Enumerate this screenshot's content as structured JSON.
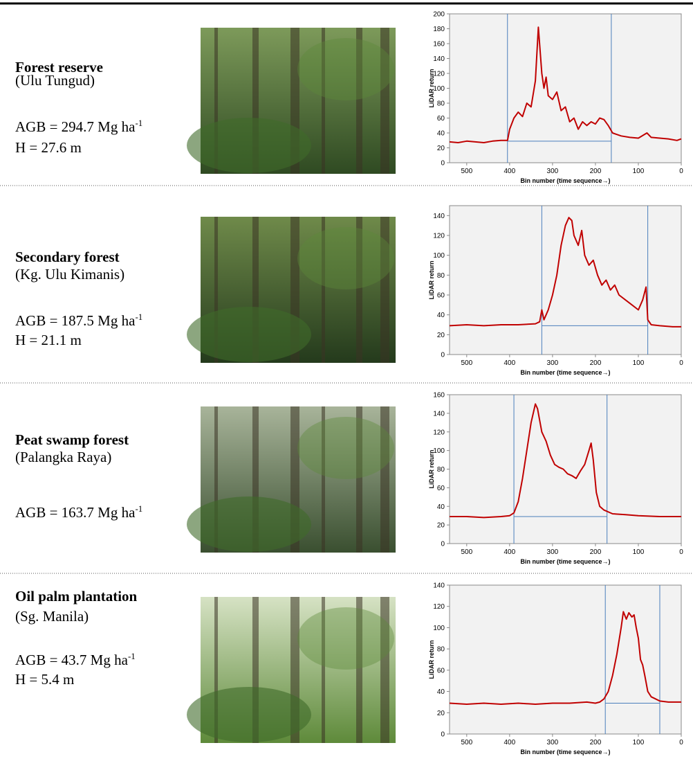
{
  "panels": [
    {
      "title": "Forest reserve",
      "location": "(Ulu Tungud)",
      "agb": "AGB = 294.7 Mg ha",
      "agb_sup": "-1",
      "height": "H = 27.6 m"
    },
    {
      "title": "Secondary forest",
      "location": "(Kg. Ulu Kimanis)",
      "agb": "AGB = 187.5 Mg ha",
      "agb_sup": "-1",
      "height": "H = 21.1 m"
    },
    {
      "title": "Peat swamp forest",
      "location": "(Palangka Raya)",
      "agb": "AGB = 163.7 Mg ha",
      "agb_sup": "-1"
    },
    {
      "title": "Oil palm plantation",
      "location": "(Sg. Manila)",
      "agb": "AGB = 43.7 Mg ha",
      "agb_sup": "-1",
      "height": "H = 5.4 m"
    }
  ],
  "chart_data": [
    {
      "type": "line",
      "ylabel": "LiDAR return",
      "xlabel": "Bin number (time sequence→)",
      "color": "#c00000",
      "ref_color": "#4a7ebb",
      "xlim": [
        540,
        0
      ],
      "xticks": [
        500,
        400,
        300,
        200,
        100,
        0
      ],
      "ylim": [
        0,
        200
      ],
      "yticks": [
        0,
        20,
        40,
        60,
        80,
        100,
        120,
        140,
        160,
        180,
        200
      ],
      "vlines": [
        405,
        163
      ],
      "hline": 29,
      "x": [
        540,
        520,
        500,
        480,
        460,
        440,
        420,
        405,
        400,
        390,
        380,
        370,
        360,
        350,
        340,
        333,
        325,
        320,
        315,
        310,
        300,
        290,
        280,
        270,
        260,
        250,
        240,
        230,
        220,
        210,
        200,
        190,
        180,
        170,
        160,
        150,
        140,
        120,
        100,
        80,
        70,
        50,
        30,
        10,
        0
      ],
      "values": [
        28,
        27,
        29,
        28,
        27,
        29,
        30,
        30,
        45,
        60,
        68,
        62,
        80,
        75,
        110,
        182,
        120,
        100,
        115,
        90,
        85,
        95,
        70,
        75,
        55,
        60,
        45,
        55,
        50,
        55,
        52,
        60,
        58,
        50,
        40,
        38,
        36,
        34,
        33,
        40,
        34,
        33,
        32,
        30,
        32
      ]
    },
    {
      "type": "line",
      "ylabel": "LiDAR return",
      "xlabel": "Bin number (time sequence→)",
      "color": "#c00000",
      "ref_color": "#4a7ebb",
      "xlim": [
        540,
        0
      ],
      "xticks": [
        500,
        400,
        300,
        200,
        100,
        0
      ],
      "ylim": [
        0,
        150
      ],
      "yticks": [
        0,
        20,
        40,
        60,
        80,
        100,
        120,
        140
      ],
      "vlines": [
        325,
        78
      ],
      "hline": 29,
      "x": [
        540,
        500,
        460,
        420,
        380,
        340,
        330,
        325,
        320,
        310,
        300,
        290,
        280,
        270,
        262,
        255,
        250,
        240,
        232,
        225,
        215,
        205,
        195,
        185,
        175,
        165,
        155,
        145,
        130,
        115,
        100,
        90,
        82,
        78,
        70,
        50,
        20,
        0
      ],
      "values": [
        29,
        30,
        29,
        30,
        30,
        31,
        33,
        45,
        35,
        45,
        60,
        80,
        110,
        130,
        138,
        135,
        120,
        110,
        125,
        100,
        90,
        95,
        80,
        70,
        75,
        65,
        70,
        60,
        55,
        50,
        45,
        55,
        68,
        35,
        30,
        29,
        28,
        28
      ]
    },
    {
      "type": "line",
      "ylabel": "LiDAR return",
      "xlabel": "Bin number (time sequence→)",
      "color": "#c00000",
      "ref_color": "#4a7ebb",
      "xlim": [
        540,
        0
      ],
      "xticks": [
        500,
        400,
        300,
        200,
        100,
        0
      ],
      "ylim": [
        0,
        160
      ],
      "yticks": [
        0,
        20,
        40,
        60,
        80,
        100,
        120,
        140,
        160
      ],
      "vlines": [
        390,
        173
      ],
      "hline": 29,
      "x": [
        540,
        500,
        460,
        420,
        400,
        390,
        380,
        370,
        360,
        350,
        340,
        335,
        325,
        315,
        305,
        295,
        285,
        275,
        265,
        255,
        245,
        235,
        225,
        215,
        210,
        205,
        198,
        190,
        180,
        160,
        130,
        100,
        50,
        0
      ],
      "values": [
        29,
        29,
        28,
        29,
        30,
        33,
        45,
        70,
        100,
        130,
        150,
        145,
        120,
        110,
        95,
        85,
        82,
        80,
        75,
        73,
        70,
        78,
        85,
        100,
        108,
        90,
        55,
        40,
        36,
        32,
        31,
        30,
        29,
        29
      ]
    },
    {
      "type": "line",
      "ylabel": "LiDAR return",
      "xlabel": "Bin number (time sequence→)",
      "color": "#c00000",
      "ref_color": "#4a7ebb",
      "xlim": [
        540,
        0
      ],
      "xticks": [
        500,
        400,
        300,
        200,
        100,
        0
      ],
      "ylim": [
        0,
        140
      ],
      "yticks": [
        0,
        20,
        40,
        60,
        80,
        100,
        120,
        140
      ],
      "vlines": [
        177,
        50
      ],
      "hline": 29,
      "x": [
        540,
        500,
        460,
        420,
        380,
        340,
        300,
        260,
        220,
        200,
        190,
        180,
        170,
        160,
        150,
        140,
        135,
        128,
        122,
        115,
        110,
        105,
        100,
        95,
        90,
        85,
        78,
        70,
        60,
        50,
        30,
        0
      ],
      "values": [
        29,
        28,
        29,
        28,
        29,
        28,
        29,
        29,
        30,
        29,
        30,
        33,
        40,
        55,
        75,
        100,
        115,
        108,
        114,
        110,
        112,
        100,
        90,
        70,
        65,
        55,
        40,
        35,
        33,
        31,
        30,
        30
      ]
    }
  ]
}
